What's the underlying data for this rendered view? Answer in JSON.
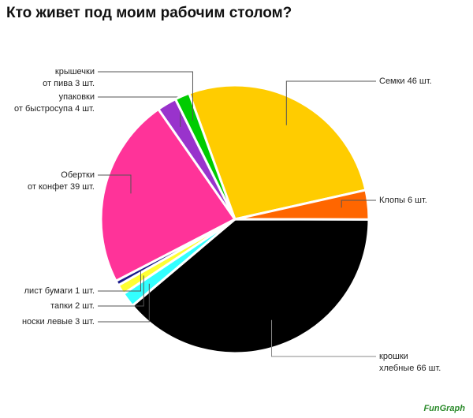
{
  "chart_data": {
    "type": "pie",
    "title": "Кто живет под моим рабочим столом?",
    "values": [
      46,
      6,
      66,
      3,
      2,
      1,
      39,
      4,
      3
    ],
    "value_labels": [
      "Семки 46 шт.",
      "Клопы 6 шт.",
      "крошки\nхлебные 66 шт.",
      "носки левые 3 шт.",
      "тапки 2 шт.",
      "лист бумаги 1 шт.",
      "Обертки\nот конфет 39 шт.",
      "упаковки\nот быстросупа 4 шт.",
      "крышечки\nот пива 3 шт."
    ],
    "colors": [
      "#ffcc00",
      "#ff6600",
      "#000000",
      "#33ffff",
      "#ffff33",
      "#1a1a8c",
      "#ff3399",
      "#9933cc",
      "#00cc00"
    ],
    "watermark": "FunGraph"
  }
}
